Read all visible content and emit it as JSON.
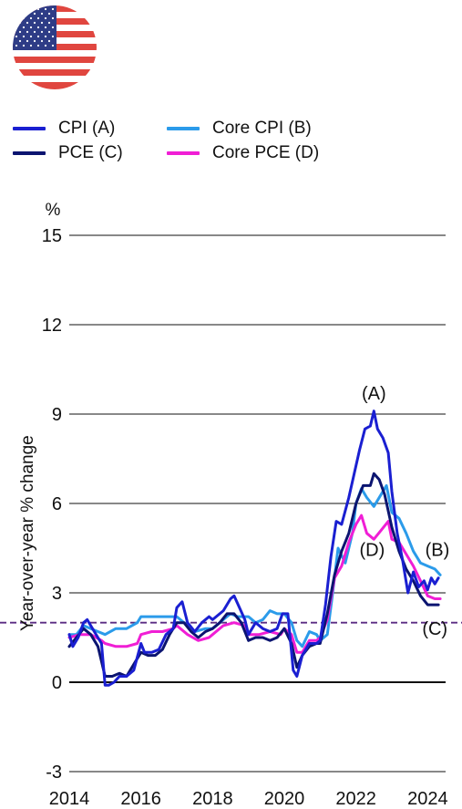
{
  "chart_data": {
    "type": "line",
    "title": "",
    "xlabel": "",
    "ylabel": "Year-over-year % change",
    "y_unit": "%",
    "xlim": [
      2014,
      2024.5
    ],
    "ylim": [
      -3,
      15
    ],
    "y_ticks": [
      "-3",
      "0",
      "3",
      "6",
      "9",
      "12",
      "15"
    ],
    "x_ticks": [
      "2014",
      "2016",
      "2018",
      "2020",
      "2022",
      "2024"
    ],
    "grid": "horizontal",
    "reference_line": {
      "y": 2,
      "style": "dashed",
      "color": "#5B2C83"
    },
    "legend": {
      "placement": "top-left",
      "items": [
        {
          "label": "CPI (A)",
          "color": "#1A1FD1"
        },
        {
          "label": "Core CPI (B)",
          "color": "#2B9BEA"
        },
        {
          "label": "PCE (C)",
          "color": "#0B1470"
        },
        {
          "label": "Core PCE (D)",
          "color": "#F01ED5"
        }
      ]
    },
    "annotations": [
      {
        "text": "(A)",
        "x": 2022.5,
        "y": 9.7
      },
      {
        "text": "(B)",
        "x": 2024.27,
        "y": 4.45
      },
      {
        "text": "(C)",
        "x": 2024.2,
        "y": 1.8
      },
      {
        "text": "(D)",
        "x": 2022.45,
        "y": 4.45
      }
    ],
    "series": [
      {
        "name": "CPI (A)",
        "color": "#1A1FD1",
        "width": 3,
        "x": [
          2014.0,
          2014.1,
          2014.25,
          2014.4,
          2014.5,
          2014.7,
          2014.9,
          2015.0,
          2015.1,
          2015.25,
          2015.4,
          2015.6,
          2015.8,
          2016.0,
          2016.1,
          2016.3,
          2016.5,
          2016.7,
          2016.9,
          2017.0,
          2017.15,
          2017.3,
          2017.5,
          2017.7,
          2017.9,
          2018.0,
          2018.3,
          2018.5,
          2018.6,
          2018.75,
          2018.9,
          2019.0,
          2019.2,
          2019.4,
          2019.6,
          2019.8,
          2019.95,
          2020.1,
          2020.25,
          2020.35,
          2020.5,
          2020.7,
          2020.9,
          2021.0,
          2021.15,
          2021.3,
          2021.45,
          2021.6,
          2021.8,
          2021.95,
          2022.1,
          2022.25,
          2022.4,
          2022.5,
          2022.6,
          2022.75,
          2022.9,
          2023.0,
          2023.15,
          2023.3,
          2023.45,
          2023.6,
          2023.75,
          2023.9,
          2024.0,
          2024.1,
          2024.2,
          2024.3
        ],
        "y": [
          1.6,
          1.2,
          1.5,
          2.0,
          2.1,
          1.7,
          1.3,
          -0.1,
          -0.1,
          0.0,
          0.2,
          0.2,
          0.4,
          1.3,
          1.0,
          1.0,
          1.1,
          1.6,
          1.8,
          2.5,
          2.7,
          2.0,
          1.7,
          2.0,
          2.2,
          2.1,
          2.4,
          2.8,
          2.9,
          2.5,
          2.1,
          1.6,
          2.0,
          1.8,
          1.7,
          1.8,
          2.3,
          2.3,
          0.4,
          0.2,
          0.9,
          1.3,
          1.3,
          1.4,
          2.6,
          4.2,
          5.4,
          5.3,
          6.2,
          7.0,
          7.8,
          8.5,
          8.6,
          9.1,
          8.5,
          8.2,
          7.7,
          6.4,
          5.0,
          4.1,
          3.0,
          3.7,
          3.2,
          3.4,
          3.1,
          3.5,
          3.3,
          3.5
        ]
      },
      {
        "name": "Core CPI (B)",
        "color": "#2B9BEA",
        "width": 3,
        "x": [
          2014.0,
          2014.2,
          2014.4,
          2014.6,
          2014.8,
          2015.0,
          2015.3,
          2015.6,
          2015.9,
          2016.0,
          2016.3,
          2016.6,
          2016.9,
          2017.0,
          2017.3,
          2017.5,
          2017.8,
          2018.0,
          2018.3,
          2018.5,
          2018.7,
          2018.9,
          2019.0,
          2019.2,
          2019.4,
          2019.6,
          2019.8,
          2020.0,
          2020.2,
          2020.35,
          2020.5,
          2020.7,
          2020.9,
          2021.0,
          2021.2,
          2021.35,
          2021.5,
          2021.7,
          2021.9,
          2022.0,
          2022.15,
          2022.3,
          2022.5,
          2022.7,
          2022.85,
          2023.0,
          2023.2,
          2023.4,
          2023.6,
          2023.8,
          2024.0,
          2024.2,
          2024.35
        ],
        "y": [
          1.6,
          1.6,
          1.9,
          1.8,
          1.7,
          1.6,
          1.8,
          1.8,
          2.0,
          2.2,
          2.2,
          2.2,
          2.2,
          2.2,
          1.9,
          1.7,
          1.8,
          1.8,
          2.1,
          2.3,
          2.2,
          2.2,
          2.2,
          2.0,
          2.1,
          2.4,
          2.3,
          2.3,
          2.0,
          1.4,
          1.2,
          1.7,
          1.6,
          1.4,
          1.6,
          3.0,
          4.5,
          4.0,
          5.0,
          6.0,
          6.5,
          6.2,
          5.9,
          6.3,
          6.6,
          5.7,
          5.5,
          5.0,
          4.4,
          4.0,
          3.9,
          3.8,
          3.6
        ]
      },
      {
        "name": "PCE (C)",
        "color": "#0B1470",
        "width": 3,
        "x": [
          2014.0,
          2014.2,
          2014.4,
          2014.6,
          2014.8,
          2015.0,
          2015.2,
          2015.4,
          2015.6,
          2015.8,
          2016.0,
          2016.2,
          2016.4,
          2016.6,
          2016.8,
          2017.0,
          2017.2,
          2017.4,
          2017.6,
          2017.8,
          2018.0,
          2018.2,
          2018.4,
          2018.6,
          2018.8,
          2019.0,
          2019.2,
          2019.4,
          2019.6,
          2019.8,
          2020.0,
          2020.2,
          2020.35,
          2020.5,
          2020.7,
          2020.9,
          2021.0,
          2021.2,
          2021.4,
          2021.6,
          2021.8,
          2022.0,
          2022.2,
          2022.4,
          2022.5,
          2022.65,
          2022.8,
          2023.0,
          2023.2,
          2023.4,
          2023.6,
          2023.8,
          2024.0,
          2024.15,
          2024.3
        ],
        "y": [
          1.2,
          1.5,
          1.8,
          1.6,
          1.2,
          0.2,
          0.2,
          0.3,
          0.2,
          0.6,
          1.0,
          0.9,
          0.9,
          1.1,
          1.6,
          2.0,
          2.0,
          1.7,
          1.5,
          1.7,
          1.8,
          2.0,
          2.3,
          2.3,
          2.0,
          1.4,
          1.5,
          1.5,
          1.4,
          1.5,
          1.8,
          1.3,
          0.5,
          0.9,
          1.2,
          1.3,
          1.3,
          2.3,
          3.6,
          4.4,
          5.0,
          6.0,
          6.6,
          6.6,
          7.0,
          6.8,
          6.3,
          5.2,
          4.4,
          3.8,
          3.4,
          2.9,
          2.6,
          2.6,
          2.6
        ]
      },
      {
        "name": "Core PCE (D)",
        "color": "#F01ED5",
        "width": 3,
        "x": [
          2014.0,
          2014.3,
          2014.6,
          2014.9,
          2015.0,
          2015.3,
          2015.6,
          2015.9,
          2016.0,
          2016.3,
          2016.6,
          2016.9,
          2017.0,
          2017.3,
          2017.6,
          2017.9,
          2018.0,
          2018.3,
          2018.6,
          2018.9,
          2019.0,
          2019.3,
          2019.6,
          2019.9,
          2020.0,
          2020.2,
          2020.35,
          2020.5,
          2020.7,
          2020.9,
          2021.0,
          2021.2,
          2021.4,
          2021.6,
          2021.8,
          2022.0,
          2022.15,
          2022.3,
          2022.5,
          2022.7,
          2022.9,
          2023.0,
          2023.2,
          2023.4,
          2023.6,
          2023.8,
          2024.0,
          2024.2,
          2024.35
        ],
        "y": [
          1.5,
          1.6,
          1.6,
          1.4,
          1.3,
          1.2,
          1.2,
          1.3,
          1.6,
          1.7,
          1.7,
          1.8,
          1.9,
          1.6,
          1.4,
          1.5,
          1.6,
          1.9,
          2.0,
          1.9,
          1.6,
          1.6,
          1.7,
          1.6,
          1.8,
          1.6,
          1.0,
          1.0,
          1.4,
          1.4,
          1.5,
          2.1,
          3.5,
          3.9,
          4.7,
          5.3,
          5.6,
          5.0,
          4.8,
          5.1,
          5.4,
          4.8,
          4.7,
          4.3,
          3.9,
          3.4,
          2.9,
          2.8,
          2.8
        ]
      }
    ]
  }
}
